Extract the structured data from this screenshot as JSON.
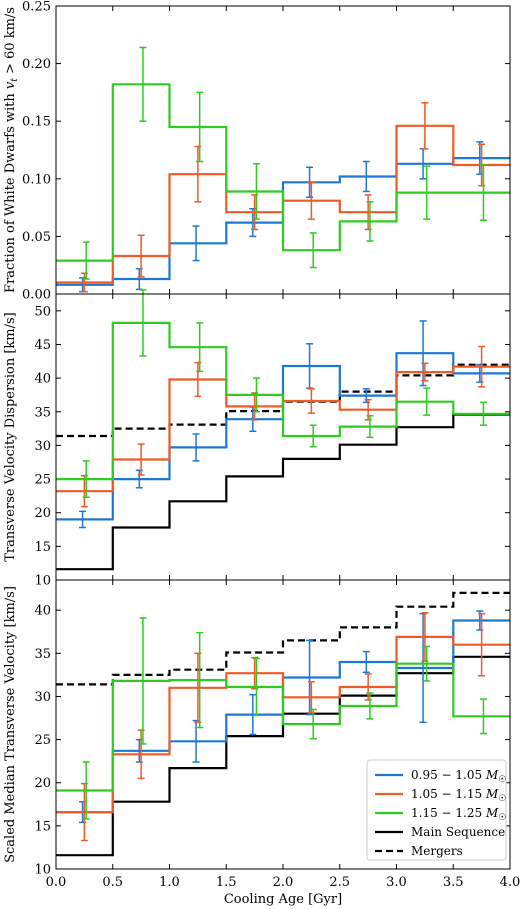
{
  "chart_data": [
    {
      "type": "line",
      "drawstyle": "steps",
      "xlabel": "",
      "ylabel": "Fraction of White Dwarfs with v_t > 60 km/s",
      "ylim": [
        0.0,
        0.25
      ],
      "yticks": [
        "0.00",
        "0.05",
        "0.10",
        "0.15",
        "0.20",
        "0.25"
      ],
      "xlim": [
        0.0,
        4.0
      ],
      "bin_edges": [
        0.0,
        0.5,
        1.0,
        1.5,
        2.0,
        2.5,
        3.0,
        3.5,
        4.0
      ],
      "bin_centers": [
        0.25,
        0.75,
        1.25,
        1.75,
        2.25,
        2.75,
        3.25,
        3.75
      ],
      "series": [
        {
          "name": "0.95 - 1.05 M☉",
          "color": "#1f77d4",
          "values": [
            0.008,
            0.013,
            0.044,
            0.062,
            0.097,
            0.102,
            0.113,
            0.118
          ],
          "err": [
            0.006,
            0.009,
            0.015,
            0.012,
            0.013,
            0.013,
            0.013,
            0.014
          ],
          "offset": 0.0
        },
        {
          "name": "1.05 - 1.15 M☉",
          "color": "#f05a28",
          "values": [
            0.01,
            0.033,
            0.104,
            0.071,
            0.081,
            0.071,
            0.146,
            0.112
          ],
          "err": [
            0.008,
            0.018,
            0.024,
            0.015,
            0.016,
            0.015,
            0.02,
            0.018
          ],
          "offset": 0.0
        },
        {
          "name": "1.15 - 1.25 M☉",
          "color": "#2ecc1f",
          "values": [
            0.029,
            0.182,
            0.145,
            0.089,
            0.038,
            0.063,
            0.088,
            0.088
          ],
          "err": [
            0.016,
            0.032,
            0.03,
            0.024,
            0.015,
            0.017,
            0.023,
            0.024
          ],
          "offset": 0.0
        }
      ]
    },
    {
      "type": "line",
      "drawstyle": "steps",
      "xlabel": "",
      "ylabel": "Transverse Velocity Dispersion [km/s]",
      "ylim": [
        10,
        52.5
      ],
      "yticks": [
        "10",
        "15",
        "20",
        "25",
        "30",
        "35",
        "40",
        "45",
        "50"
      ],
      "xlim": [
        0.0,
        4.0
      ],
      "bin_edges": [
        0.0,
        0.5,
        1.0,
        1.5,
        2.0,
        2.5,
        3.0,
        3.5,
        4.0
      ],
      "bin_centers": [
        0.25,
        0.75,
        1.25,
        1.75,
        2.25,
        2.75,
        3.25,
        3.75
      ],
      "series": [
        {
          "name": "0.95 - 1.05 M☉",
          "color": "#1f77d4",
          "values": [
            19.0,
            25.0,
            29.7,
            33.9,
            41.8,
            37.4,
            43.7,
            40.7
          ],
          "err": [
            1.2,
            1.3,
            2.0,
            1.8,
            3.3,
            1.0,
            4.8,
            1.3
          ],
          "offset": 0.0
        },
        {
          "name": "1.05 - 1.15 M☉",
          "color": "#f05a28",
          "values": [
            23.2,
            27.9,
            39.8,
            35.8,
            36.6,
            35.3,
            40.9,
            41.7
          ],
          "err": [
            2.3,
            2.3,
            2.5,
            2.0,
            1.8,
            1.5,
            1.3,
            3.0
          ],
          "offset": 0.0
        },
        {
          "name": "1.15 - 1.25 M☉",
          "color": "#2ecc1f",
          "values": [
            25.0,
            48.2,
            44.6,
            37.5,
            31.4,
            32.8,
            36.5,
            34.7
          ],
          "err": [
            2.7,
            4.9,
            3.6,
            2.5,
            1.6,
            1.6,
            2.0,
            1.7
          ],
          "offset": 0.0
        },
        {
          "name": "Main Sequence",
          "color": "#000000",
          "values": [
            11.6,
            17.8,
            21.7,
            25.4,
            28.0,
            30.1,
            32.7,
            34.6
          ],
          "err": null,
          "dashed": false
        },
        {
          "name": "Mergers",
          "color": "#000000",
          "values": [
            31.4,
            32.5,
            33.1,
            35.1,
            36.5,
            38.0,
            40.4,
            42.0
          ],
          "err": null,
          "dashed": true
        }
      ]
    },
    {
      "type": "line",
      "drawstyle": "steps",
      "xlabel": "Cooling Age [Gyr]",
      "ylabel": "Scaled Median Transverse Velocity [km/s]",
      "ylim": [
        10,
        43.5
      ],
      "yticks": [
        "10",
        "15",
        "20",
        "25",
        "30",
        "35",
        "40"
      ],
      "xlim": [
        0.0,
        4.0
      ],
      "xticks": [
        "0.0",
        "0.5",
        "1.0",
        "1.5",
        "2.0",
        "2.5",
        "3.0",
        "3.5",
        "4.0"
      ],
      "bin_edges": [
        0.0,
        0.5,
        1.0,
        1.5,
        2.0,
        2.5,
        3.0,
        3.5,
        4.0
      ],
      "bin_centers": [
        0.25,
        0.75,
        1.25,
        1.75,
        2.25,
        2.75,
        3.25,
        3.75
      ],
      "series": [
        {
          "name": "0.95 - 1.05 M☉",
          "color": "#1f77d4",
          "values": [
            16.6,
            23.7,
            24.8,
            27.9,
            32.2,
            34.0,
            33.3,
            38.8
          ],
          "err": [
            1.2,
            1.3,
            2.4,
            2.3,
            4.3,
            1.2,
            6.3,
            1.1
          ],
          "offset": 0.0
        },
        {
          "name": "1.05 - 1.15 M☉",
          "color": "#f05a28",
          "values": [
            16.6,
            23.3,
            31.0,
            32.7,
            29.9,
            31.1,
            36.9,
            36.0
          ],
          "err": [
            3.3,
            2.8,
            4.0,
            1.8,
            1.8,
            1.5,
            2.8,
            3.6
          ],
          "offset": 0.0
        },
        {
          "name": "1.15 - 1.25 M☉",
          "color": "#2ecc1f",
          "values": [
            19.1,
            31.8,
            31.9,
            31.1,
            26.8,
            28.9,
            33.8,
            27.7
          ],
          "err": [
            3.3,
            7.3,
            5.5,
            3.3,
            1.7,
            1.5,
            2.0,
            2.0
          ],
          "offset": 0.0
        },
        {
          "name": "Main Sequence",
          "color": "#000000",
          "values": [
            11.6,
            17.8,
            21.7,
            25.4,
            28.0,
            30.1,
            32.7,
            34.6
          ],
          "err": null,
          "dashed": false
        },
        {
          "name": "Mergers",
          "color": "#000000",
          "values": [
            31.4,
            32.5,
            33.1,
            35.1,
            36.5,
            38.0,
            40.4,
            42.0
          ],
          "err": null,
          "dashed": true
        }
      ]
    }
  ],
  "legend": {
    "placement": "lower-right of bottom panel",
    "entries": [
      {
        "label": "0.95 − 1.05 M☉",
        "color": "#1f77d4",
        "dashed": false
      },
      {
        "label": "1.05 − 1.15 M☉",
        "color": "#f05a28",
        "dashed": false
      },
      {
        "label": "1.15 − 1.25 M☉",
        "color": "#2ecc1f",
        "dashed": false
      },
      {
        "label": "Main Sequence",
        "color": "#000000",
        "dashed": false
      },
      {
        "label": "Mergers",
        "color": "#000000",
        "dashed": true
      }
    ]
  }
}
